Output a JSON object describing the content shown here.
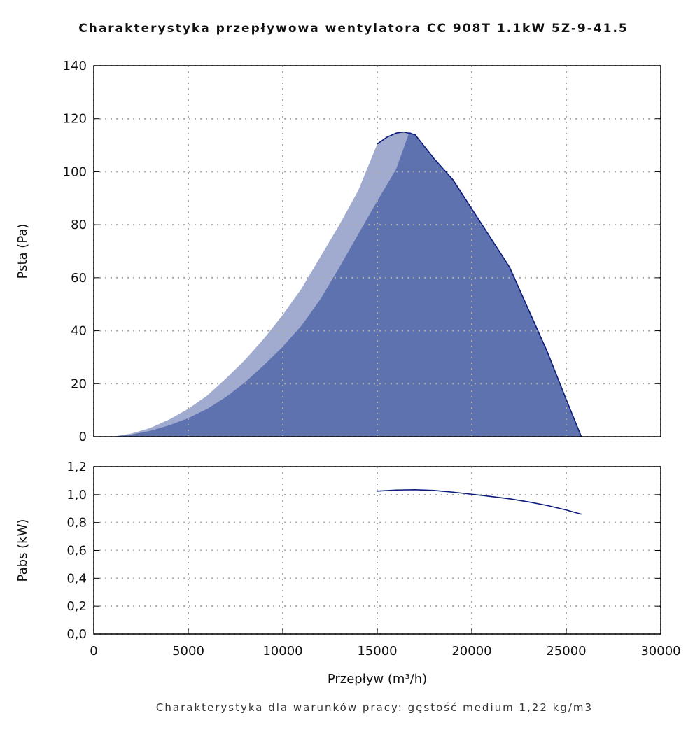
{
  "title": "Charakterystyka przepływowa wentylatora CC 908T 1.1kW 5Z-9-41.5",
  "note": "Charakterystyka dla warunków pracy: gęstość medium 1,22 kg/m3",
  "chart_data": [
    {
      "type": "area",
      "ylabel": "Psta (Pa)",
      "xlim": [
        0,
        30000
      ],
      "ylim": [
        0,
        140
      ],
      "yticks": [
        0,
        20,
        40,
        60,
        80,
        100,
        120,
        140
      ],
      "grid": true,
      "series": [
        {
          "color": "#a1aacf",
          "x": [
            1000,
            2000,
            3000,
            4000,
            5000,
            6000,
            7000,
            8000,
            9000,
            10000,
            11000,
            12000,
            13000,
            14000,
            15000,
            15500,
            16000,
            16400,
            17000,
            18000,
            19000,
            20000,
            21000,
            22000,
            23000,
            24000,
            25000,
            25800
          ],
          "values": [
            0,
            1.2,
            3.3,
            6.5,
            10.5,
            15.5,
            22,
            29,
            37,
            46,
            56,
            68,
            80,
            93,
            110.5,
            113,
            114.6,
            115,
            114,
            105,
            97,
            86,
            75,
            64,
            48,
            32,
            14,
            0
          ]
        },
        {
          "color": "#5f72b0",
          "x": [
            1000,
            2000,
            3000,
            4000,
            5000,
            6000,
            7000,
            8000,
            9000,
            10000,
            11000,
            12000,
            13000,
            14000,
            15000,
            16000,
            16700,
            17000,
            18000,
            19000,
            20000,
            21000,
            22000,
            23000,
            24000,
            25000,
            25800
          ],
          "values": [
            0,
            0.8,
            2.2,
            4.3,
            7,
            10.5,
            15,
            20.5,
            27,
            34,
            42,
            52,
            64,
            76.5,
            89,
            101,
            115,
            114,
            105,
            97,
            86,
            75,
            64,
            48,
            32,
            14,
            0
          ]
        },
        {
          "color": "#0c1a7a",
          "line": true,
          "x": [
            15000,
            15500,
            16000,
            16400,
            17000,
            18000,
            19000,
            20000,
            21000,
            22000,
            23000,
            24000,
            25000,
            25800
          ],
          "values": [
            110.5,
            113,
            114.6,
            115,
            114,
            105,
            97,
            86,
            75,
            64,
            48,
            32,
            14,
            0
          ]
        }
      ]
    },
    {
      "type": "line",
      "ylabel": "Pabs (kW)",
      "xlabel": "Przepływ (m³/h)",
      "xlim": [
        0,
        30000
      ],
      "xticks": [
        0,
        5000,
        10000,
        15000,
        20000,
        25000,
        30000
      ],
      "ylim": [
        0,
        1.2
      ],
      "yticks": [
        {
          "value": 0,
          "label": "0,0"
        },
        {
          "value": 0.2,
          "label": "0,2"
        },
        {
          "value": 0.4,
          "label": "0,4"
        },
        {
          "value": 0.6,
          "label": "0,6"
        },
        {
          "value": 0.8,
          "label": "0,8"
        },
        {
          "value": 1.0,
          "label": "1,0"
        },
        {
          "value": 1.2,
          "label": "1,2"
        }
      ],
      "grid": true,
      "series": [
        {
          "color": "#0c1a7a",
          "line": true,
          "x": [
            15000,
            16000,
            17000,
            18000,
            19000,
            20000,
            21000,
            22000,
            23000,
            24000,
            25000,
            25800
          ],
          "values": [
            1.025,
            1.033,
            1.035,
            1.03,
            1.018,
            1.003,
            0.987,
            0.97,
            0.948,
            0.922,
            0.89,
            0.86
          ]
        }
      ]
    }
  ]
}
